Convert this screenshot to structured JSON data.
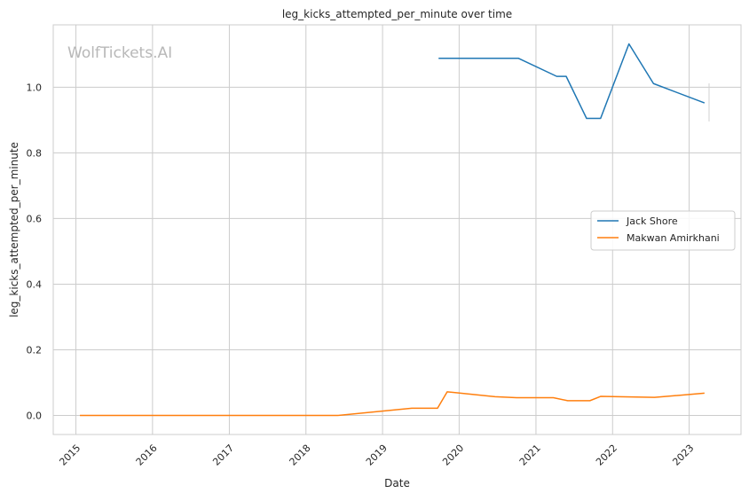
{
  "watermark": "WolfTickets.AI",
  "chart_data": {
    "type": "line",
    "title": "leg_kicks_attempted_per_minute over time",
    "xlabel": "Date",
    "ylabel": "leg_kicks_attempted_per_minute",
    "x_type": "date",
    "xlim": [
      "2014-09-15",
      "2023-09-05"
    ],
    "ylim": [
      -0.058,
      1.19
    ],
    "x_ticks": [
      "2015-01-01",
      "2016-01-01",
      "2017-01-01",
      "2018-01-01",
      "2019-01-01",
      "2020-01-01",
      "2021-01-01",
      "2022-01-01",
      "2023-01-01"
    ],
    "x_tick_labels": [
      "2015",
      "2016",
      "2017",
      "2018",
      "2019",
      "2020",
      "2021",
      "2022",
      "2023"
    ],
    "y_ticks": [
      0.0,
      0.2,
      0.4,
      0.6,
      0.8,
      1.0
    ],
    "y_tick_labels": [
      "0.0",
      "0.2",
      "0.4",
      "0.6",
      "0.8",
      "1.0"
    ],
    "grid": true,
    "legend_position": "center-right",
    "series": [
      {
        "name": "Jack Shore",
        "color": "#1f77b4",
        "points": [
          {
            "x": "2019-09-25",
            "y": 1.088
          },
          {
            "x": "2020-10-10",
            "y": 1.088
          },
          {
            "x": "2021-04-10",
            "y": 1.033
          },
          {
            "x": "2021-05-25",
            "y": 1.033
          },
          {
            "x": "2021-08-30",
            "y": 0.905
          },
          {
            "x": "2021-11-05",
            "y": 0.905
          },
          {
            "x": "2022-03-20",
            "y": 1.132
          },
          {
            "x": "2022-07-15",
            "y": 1.011
          },
          {
            "x": "2023-03-15",
            "y": 0.952
          }
        ]
      },
      {
        "name": "Makwan Amirkhani",
        "color": "#ff7f0e",
        "points": [
          {
            "x": "2015-01-20",
            "y": 0.0
          },
          {
            "x": "2018-06-01",
            "y": 0.0
          },
          {
            "x": "2019-05-20",
            "y": 0.022
          },
          {
            "x": "2019-09-20",
            "y": 0.022
          },
          {
            "x": "2019-11-05",
            "y": 0.072
          },
          {
            "x": "2020-06-20",
            "y": 0.057
          },
          {
            "x": "2020-10-01",
            "y": 0.054
          },
          {
            "x": "2021-03-25",
            "y": 0.054
          },
          {
            "x": "2021-06-01",
            "y": 0.045
          },
          {
            "x": "2021-09-15",
            "y": 0.045
          },
          {
            "x": "2021-11-05",
            "y": 0.058
          },
          {
            "x": "2022-07-20",
            "y": 0.055
          },
          {
            "x": "2023-03-15",
            "y": 0.068
          }
        ]
      }
    ]
  }
}
